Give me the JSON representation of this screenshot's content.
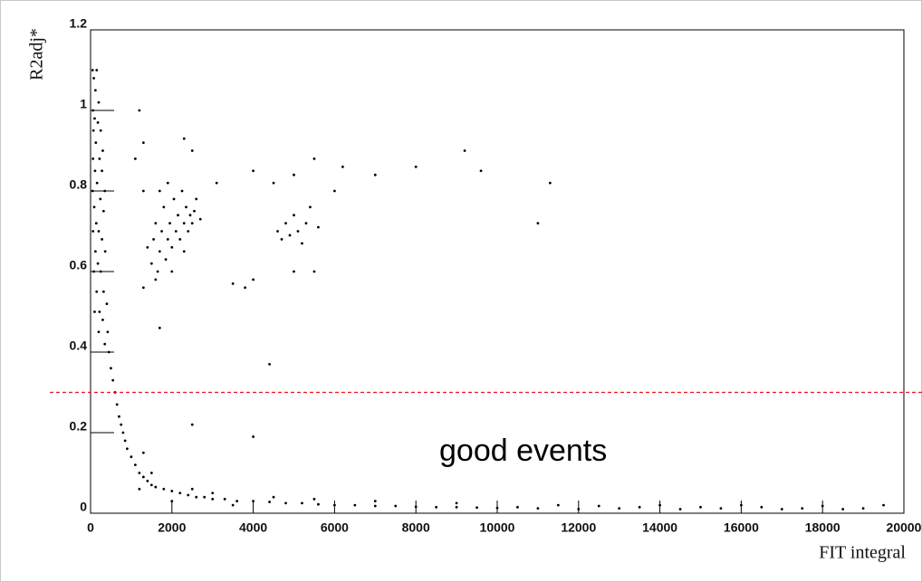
{
  "chart_data": {
    "type": "scatter",
    "x_label": "FIT integral",
    "y_label": "R2adj*",
    "annotation": "good events",
    "color": "#000000",
    "xlim": [
      0,
      20000
    ],
    "ylim": [
      0,
      1.2
    ],
    "xticks": [
      0,
      2000,
      4000,
      6000,
      8000,
      10000,
      12000,
      14000,
      16000,
      18000,
      20000
    ],
    "yticks": [
      0,
      0.2,
      0.4,
      0.6,
      0.8,
      1,
      1.2
    ],
    "hline": {
      "value": 0.3,
      "color": "#e8141e"
    },
    "x": [
      50,
      80,
      120,
      150,
      200,
      60,
      100,
      180,
      250,
      300,
      70,
      130,
      220,
      280,
      350,
      60,
      110,
      160,
      240,
      320,
      50,
      90,
      140,
      200,
      280,
      360,
      60,
      120,
      180,
      250,
      320,
      400,
      80,
      150,
      220,
      300,
      420,
      100,
      200,
      350,
      450,
      500,
      550,
      600,
      650,
      700,
      750,
      800,
      850,
      900,
      1000,
      1100,
      1200,
      1300,
      1400,
      1500,
      1600,
      1800,
      2000,
      2200,
      2400,
      2600,
      2800,
      3000,
      3300,
      3600,
      4000,
      4400,
      4800,
      5200,
      5600,
      6000,
      6500,
      7000,
      7500,
      8000,
      8500,
      9000,
      9500,
      10000,
      10500,
      11000,
      11500,
      12000,
      12500,
      13000,
      13500,
      14000,
      14500,
      15000,
      15500,
      16000,
      16500,
      17000,
      17500,
      18000,
      18500,
      19000,
      19500,
      1200,
      1500,
      2000,
      2500,
      3000,
      3500,
      4500,
      5500,
      7000,
      9000,
      1500,
      1550,
      1600,
      1650,
      1700,
      1750,
      1800,
      1850,
      1900,
      1950,
      2000,
      2050,
      2100,
      2150,
      2200,
      2250,
      2300,
      2350,
      2400,
      2450,
      2500,
      2550,
      1600,
      1700,
      1900,
      2000,
      2300,
      2600,
      1400,
      2700,
      4600,
      4700,
      4800,
      4900,
      5000,
      5100,
      5200,
      5300,
      5400,
      5600,
      1200,
      1300,
      2300,
      2500,
      1100,
      1300,
      3100,
      4000,
      4500,
      5000,
      5500,
      6200,
      7000,
      8000,
      9200,
      9600,
      11300,
      11000,
      6000,
      3500,
      4000,
      5000,
      5500,
      4400,
      4000,
      1700,
      1300,
      2500,
      1300,
      3800
    ],
    "values": [
      1.1,
      1.08,
      1.05,
      1.1,
      1.02,
      1.0,
      0.98,
      0.97,
      0.95,
      0.9,
      0.95,
      0.92,
      0.88,
      0.85,
      0.8,
      0.88,
      0.85,
      0.82,
      0.78,
      0.75,
      0.8,
      0.76,
      0.72,
      0.7,
      0.68,
      0.65,
      0.7,
      0.65,
      0.62,
      0.6,
      0.55,
      0.52,
      0.6,
      0.55,
      0.5,
      0.48,
      0.45,
      0.5,
      0.45,
      0.42,
      0.4,
      0.36,
      0.33,
      0.3,
      0.27,
      0.24,
      0.22,
      0.2,
      0.18,
      0.16,
      0.14,
      0.12,
      0.1,
      0.09,
      0.08,
      0.07,
      0.065,
      0.06,
      0.055,
      0.05,
      0.045,
      0.04,
      0.04,
      0.035,
      0.035,
      0.03,
      0.03,
      0.028,
      0.025,
      0.025,
      0.022,
      0.02,
      0.02,
      0.018,
      0.018,
      0.016,
      0.015,
      0.015,
      0.014,
      0.013,
      0.015,
      0.012,
      0.02,
      0.01,
      0.018,
      0.012,
      0.015,
      0.02,
      0.01,
      0.015,
      0.012,
      0.02,
      0.015,
      0.01,
      0.012,
      0.018,
      0.01,
      0.012,
      0.02,
      0.06,
      0.1,
      0.03,
      0.06,
      0.05,
      0.02,
      0.04,
      0.035,
      0.03,
      0.025,
      0.62,
      0.68,
      0.72,
      0.6,
      0.65,
      0.7,
      0.76,
      0.63,
      0.68,
      0.72,
      0.66,
      0.78,
      0.7,
      0.74,
      0.68,
      0.8,
      0.72,
      0.76,
      0.7,
      0.74,
      0.72,
      0.75,
      0.58,
      0.8,
      0.82,
      0.6,
      0.65,
      0.78,
      0.66,
      0.73,
      0.7,
      0.68,
      0.72,
      0.69,
      0.74,
      0.7,
      0.67,
      0.72,
      0.76,
      0.71,
      1.0,
      0.92,
      0.93,
      0.9,
      0.88,
      0.8,
      0.82,
      0.85,
      0.82,
      0.84,
      0.88,
      0.86,
      0.84,
      0.86,
      0.9,
      0.85,
      0.82,
      0.72,
      0.8,
      0.57,
      0.58,
      0.6,
      0.6,
      0.37,
      0.19,
      0.46,
      0.15,
      0.22,
      0.56,
      0.56
    ]
  }
}
